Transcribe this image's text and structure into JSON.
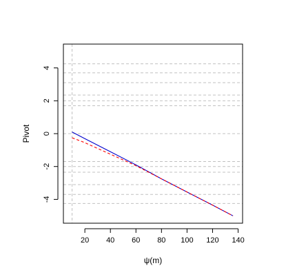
{
  "chart_data": {
    "type": "line",
    "title": "",
    "xlabel": "ψ(m)",
    "ylabel": "Pivot",
    "xlim": [
      3.2,
      143.5
    ],
    "ylim": [
      -5.45,
      5.45
    ],
    "x_ticks": [
      20,
      40,
      60,
      80,
      100,
      120,
      140
    ],
    "x_tick_labels": [
      "20",
      "40",
      "60",
      "80",
      "100",
      "120",
      "140"
    ],
    "y_ticks": [
      -4,
      -2,
      0,
      2,
      4
    ],
    "y_tick_labels": [
      "-4",
      "-2",
      "0",
      "2",
      "4"
    ],
    "grid": false,
    "reference_lines": {
      "vertical_x": [
        10
      ],
      "horizontal_y": [
        4.25,
        3.7,
        3.1,
        2.35,
        2.0,
        1.7,
        0,
        -1.7,
        -2.0,
        -2.35,
        -3.1,
        -3.7,
        -4.25
      ]
    },
    "series": [
      {
        "style": "solid",
        "color": "#0000cc",
        "x": [
          10,
          20,
          40,
          60,
          80,
          100,
          120,
          136
        ],
        "y": [
          0.1,
          -0.3,
          -1.1,
          -1.9,
          -2.75,
          -3.55,
          -4.35,
          -5.0
        ]
      },
      {
        "style": "dashed",
        "color": "#ff0000",
        "x": [
          10,
          20,
          30,
          40,
          50,
          60,
          80,
          100,
          120,
          136
        ],
        "y": [
          -0.25,
          -0.55,
          -0.9,
          -1.25,
          -1.6,
          -1.95,
          -2.75,
          -3.55,
          -4.35,
          -5.0
        ]
      }
    ]
  }
}
